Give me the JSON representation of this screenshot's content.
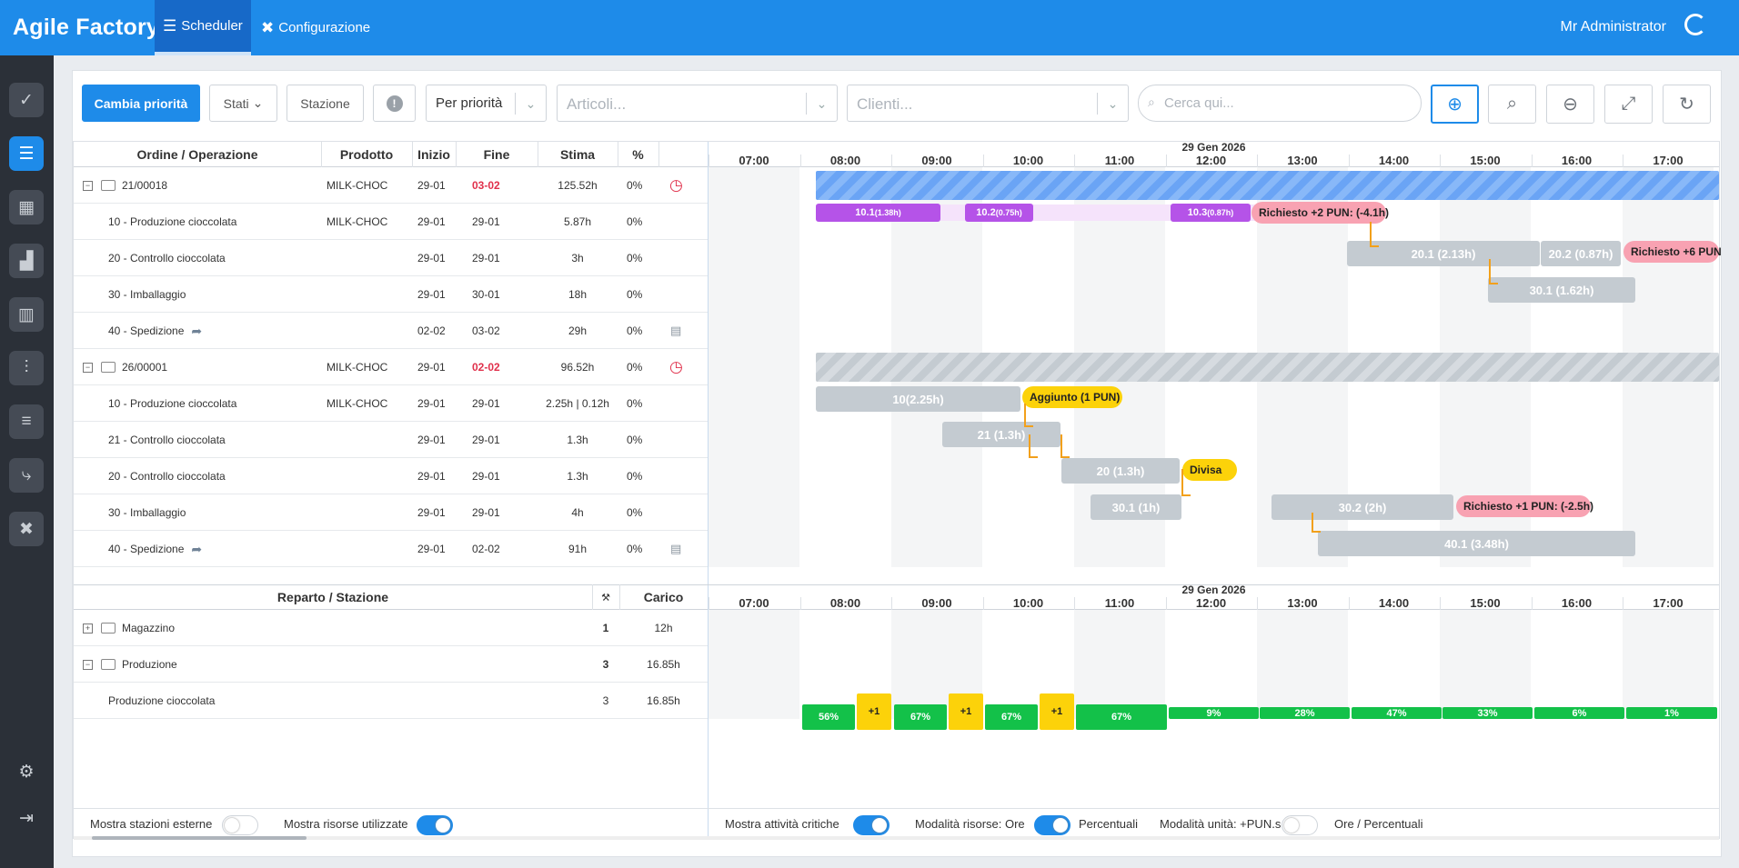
{
  "app": {
    "brand": "Agile Factory",
    "user": "Mr Administrator"
  },
  "nav": [
    {
      "label": "Scheduler",
      "icon": "scheduler-icon",
      "active": true
    },
    {
      "label": "Configurazione",
      "icon": "tools-icon",
      "active": false
    }
  ],
  "sidebar": [
    {
      "icon": "clipboard-check-icon"
    },
    {
      "icon": "scheduler-icon",
      "active": true
    },
    {
      "icon": "calendar-icon"
    },
    {
      "icon": "factory-icon"
    },
    {
      "icon": "bar-chart-icon"
    },
    {
      "icon": "line-chart-icon"
    },
    {
      "icon": "list-icon"
    },
    {
      "icon": "route-icon"
    },
    {
      "icon": "tools-icon"
    },
    {
      "icon": "gear-icon"
    },
    {
      "icon": "logout-icon"
    }
  ],
  "toolbar": {
    "priority_btn": "Cambia priorità",
    "states": "Stati",
    "station": "Stazione",
    "sort": "Per priorità",
    "articles_placeholder": "Articoli...",
    "clients_placeholder": "Clienti...",
    "search_placeholder": "Cerca qui..."
  },
  "table": {
    "headers": {
      "order": "Ordine / Operazione",
      "product": "Prodotto",
      "start": "Inizio",
      "end": "Fine",
      "estimate": "Stima",
      "pct": "%"
    },
    "rows": [
      {
        "type": "order",
        "name": "21/00018",
        "product": "MILK-CHOC",
        "start": "29-01",
        "end": "03-02",
        "estimate": "125.52h",
        "pct": "0%",
        "late": true
      },
      {
        "type": "op",
        "name": "10 - Produzione cioccolata",
        "product": "MILK-CHOC",
        "start": "29-01",
        "end": "29-01",
        "estimate": "5.87h",
        "pct": "0%"
      },
      {
        "type": "op",
        "name": "20 - Controllo cioccolata",
        "product": "",
        "start": "29-01",
        "end": "29-01",
        "estimate": "3h",
        "pct": "0%"
      },
      {
        "type": "op",
        "name": "30 - Imballaggio",
        "product": "",
        "start": "29-01",
        "end": "30-01",
        "estimate": "18h",
        "pct": "0%"
      },
      {
        "type": "op",
        "name": "40 - Spedizione",
        "product": "",
        "start": "02-02",
        "end": "03-02",
        "estimate": "29h",
        "pct": "0%",
        "ship": true
      },
      {
        "type": "order",
        "name": "26/00001",
        "product": "MILK-CHOC",
        "start": "29-01",
        "end": "02-02",
        "estimate": "96.52h",
        "pct": "0%",
        "late": true
      },
      {
        "type": "op",
        "name": "10 - Produzione cioccolata",
        "product": "MILK-CHOC",
        "start": "29-01",
        "end": "29-01",
        "estimate": "2.25h | 0.12h",
        "pct": "0%"
      },
      {
        "type": "op",
        "name": "21 - Controllo cioccolata",
        "product": "",
        "start": "29-01",
        "end": "29-01",
        "estimate": "1.3h",
        "pct": "0%"
      },
      {
        "type": "op",
        "name": "20 - Controllo cioccolata",
        "product": "",
        "start": "29-01",
        "end": "29-01",
        "estimate": "1.3h",
        "pct": "0%"
      },
      {
        "type": "op",
        "name": "30 - Imballaggio",
        "product": "",
        "start": "29-01",
        "end": "29-01",
        "estimate": "4h",
        "pct": "0%"
      },
      {
        "type": "op",
        "name": "40 - Spedizione",
        "product": "",
        "start": "29-01",
        "end": "02-02",
        "estimate": "91h",
        "pct": "0%",
        "ship": true
      }
    ]
  },
  "timeline": {
    "date": "29 Gen 2026",
    "hours": [
      "07:00",
      "08:00",
      "09:00",
      "10:00",
      "11:00",
      "12:00",
      "13:00",
      "14:00",
      "15:00",
      "16:00",
      "17:00"
    ]
  },
  "bars": {
    "r1": [
      {
        "label": "10.1",
        "sub": "(1.38h)"
      },
      {
        "label": "10.2",
        "sub": "(0.75h)"
      },
      {
        "label": "10.3",
        "sub": "(0.87h)"
      }
    ],
    "r1_tag": "Richiesto +2 PUN: (-4.1h)",
    "r2": [
      "20.1 (2.13h)",
      "20.2 (0.87h)"
    ],
    "r2_tag": "Richiesto +6 PUN",
    "r3": "30.1 (1.62h)",
    "r6": "10(2.25h)",
    "r6_tag": "Aggiunto (1 PUN)",
    "r7": "21 (1.3h)",
    "r8": "20 (1.3h)",
    "r8_tag": "Divisa",
    "r9": [
      "30.1 (1h)",
      "30.2 (2h)"
    ],
    "r9_tag": "Richiesto +1 PUN: (-2.5h)",
    "r10": "40.1 (3.48h)"
  },
  "resources": {
    "headers": {
      "dept": "Reparto / Stazione",
      "load": "Carico"
    },
    "rows": [
      {
        "name": "Magazzino",
        "count": "1",
        "load": "12h",
        "expand": "+"
      },
      {
        "name": "Produzione",
        "count": "3",
        "load": "16.85h",
        "expand": "−"
      },
      {
        "name": "Produzione cioccolata",
        "count": "3",
        "load": "16.85h"
      }
    ],
    "loads": [
      "56%",
      "+1",
      "67%",
      "+1",
      "67%",
      "+1",
      "67%",
      "9%",
      "28%",
      "47%",
      "33%",
      "6%",
      "1%"
    ]
  },
  "footer": {
    "ext": "Mostra stazioni esterne",
    "used": "Mostra risorse utilizzate",
    "critical": "Mostra attività critiche",
    "res_mode": "Modalità risorse: Ore",
    "res_mode2": "Percentuali",
    "unit_mode": "Modalità unità: +PUN.s",
    "unit_mode2": "Ore / Percentuali"
  }
}
